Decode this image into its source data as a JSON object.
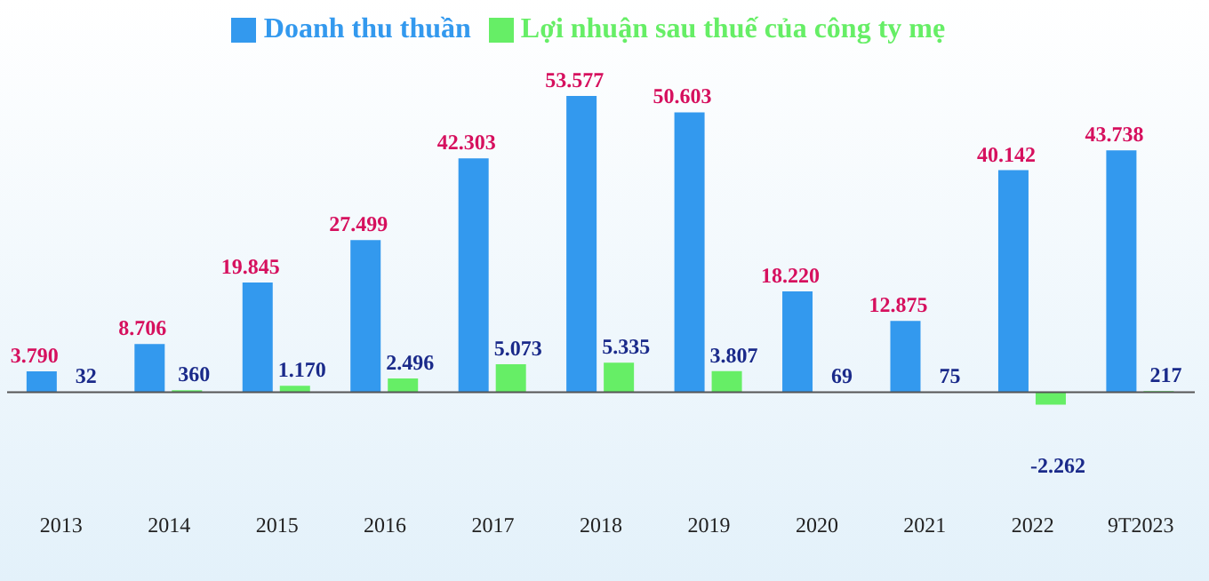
{
  "chart_data": {
    "type": "bar",
    "categories": [
      "2013",
      "2014",
      "2015",
      "2016",
      "2017",
      "2018",
      "2019",
      "2020",
      "2021",
      "2022",
      "9T2023"
    ],
    "series": [
      {
        "name": "Doanh thu thuần",
        "color": "#3399ee",
        "values": [
          3790,
          8706,
          19845,
          27499,
          42303,
          53577,
          50603,
          18220,
          12875,
          40142,
          43738
        ],
        "value_labels": [
          "3.790",
          "8.706",
          "19.845",
          "27.499",
          "42.303",
          "53.577",
          "50.603",
          "18.220",
          "12.875",
          "40.142",
          "43.738"
        ]
      },
      {
        "name": "Lợi nhuận sau thuế của công ty mẹ",
        "color": "#66ee66",
        "values": [
          32,
          360,
          1170,
          2496,
          5073,
          5335,
          3807,
          69,
          75,
          -2262,
          217
        ],
        "value_labels": [
          "32",
          "360",
          "1.170",
          "2.496",
          "5.073",
          "5.335",
          "3.807",
          "69",
          "75",
          "-2.262",
          "217"
        ]
      }
    ],
    "tick_labels": "x",
    "legend": "top"
  }
}
